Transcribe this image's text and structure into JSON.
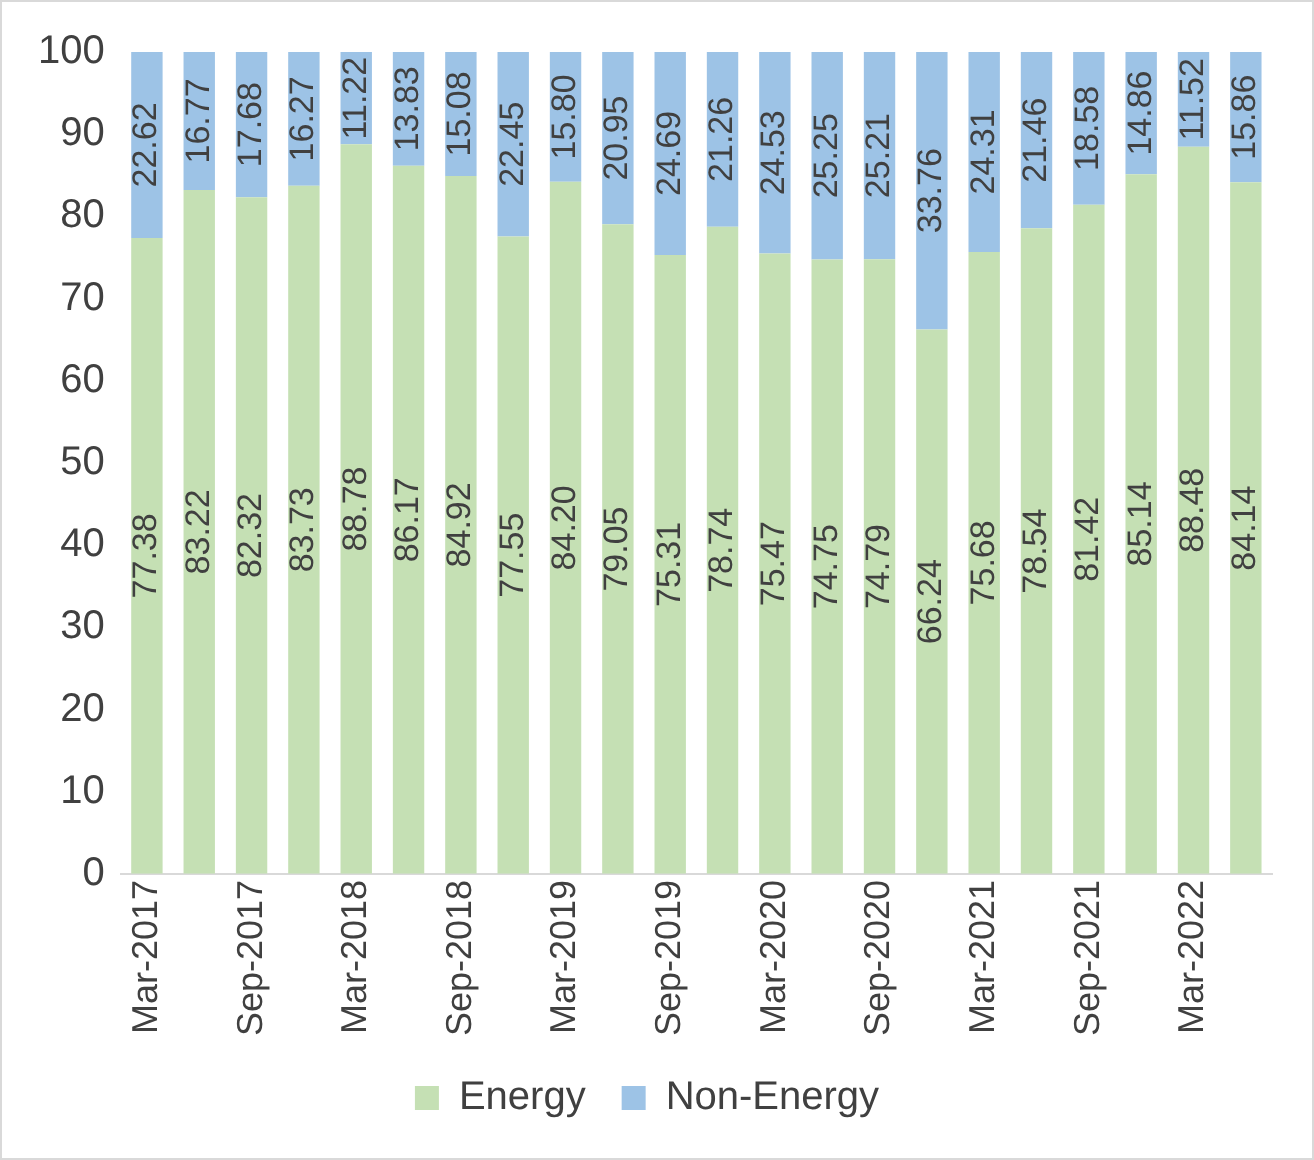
{
  "chart_data": {
    "type": "bar",
    "stacked": true,
    "categories": [
      "Mar-2017",
      null,
      "Sep-2017",
      null,
      "Mar-2018",
      null,
      "Sep-2018",
      null,
      "Mar-2019",
      null,
      "Sep-2019",
      null,
      "Mar-2020",
      null,
      "Sep-2020",
      null,
      "Mar-2021",
      null,
      "Sep-2021",
      null,
      "Mar-2022",
      null
    ],
    "series": [
      {
        "name": "Energy",
        "color": "#c5e0b4",
        "values": [
          77.38,
          83.22,
          82.32,
          83.73,
          88.78,
          86.17,
          84.92,
          77.55,
          84.2,
          79.05,
          75.31,
          78.74,
          75.47,
          74.75,
          74.79,
          66.24,
          75.68,
          78.54,
          81.42,
          85.14,
          88.48,
          84.14
        ],
        "value_labels": [
          "77.38",
          "83.22",
          "82.32",
          "83.73",
          "88.78",
          "86.17",
          "84.92",
          "77.55",
          "84.20",
          "79.05",
          "75.31",
          "78.74",
          "75.47",
          "74.75",
          "74.79",
          "66.24",
          "75.68",
          "78.54",
          "81.42",
          "85.14",
          "88.48",
          "84.14"
        ]
      },
      {
        "name": "Non-Energy",
        "color": "#9dc3e6",
        "values": [
          22.62,
          16.77,
          17.68,
          16.27,
          11.22,
          13.83,
          15.08,
          22.45,
          15.8,
          20.95,
          24.69,
          21.26,
          24.53,
          25.25,
          25.21,
          33.76,
          24.31,
          21.46,
          18.58,
          14.86,
          11.52,
          15.86
        ],
        "value_labels": [
          "22.62",
          "16.77",
          "17.68",
          "16.27",
          "11.22",
          "13.83",
          "15.08",
          "22.45",
          "15.80",
          "20.95",
          "24.69",
          "21.26",
          "24.53",
          "25.25",
          "25.21",
          "33.76",
          "24.31",
          "21.46",
          "18.58",
          "14.86",
          "11.52",
          "15.86"
        ]
      }
    ],
    "ylim": [
      0,
      100
    ],
    "yticks": [
      0,
      10,
      20,
      30,
      40,
      50,
      60,
      70,
      80,
      90,
      100
    ],
    "grid": false,
    "legend": "bottom"
  }
}
